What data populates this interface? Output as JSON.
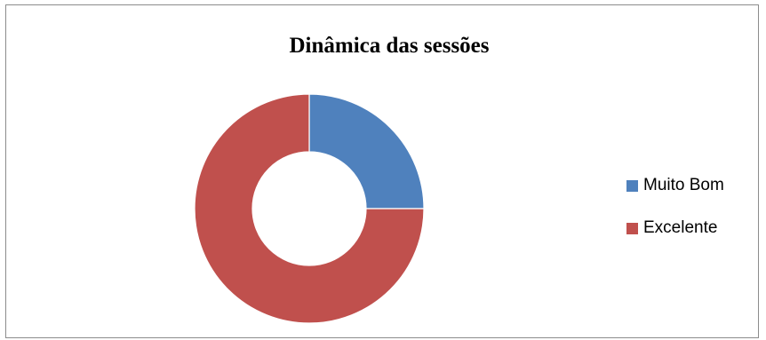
{
  "chart_data": {
    "type": "pie",
    "subtype": "doughnut",
    "title": "Dinâmica das sessões",
    "categories": [
      "Muito Bom",
      "Excelente"
    ],
    "values": [
      25,
      75
    ],
    "colors": [
      "#4f81bd",
      "#c0504d"
    ],
    "legend_position": "right",
    "start_angle": "12 o'clock, clockwise"
  }
}
